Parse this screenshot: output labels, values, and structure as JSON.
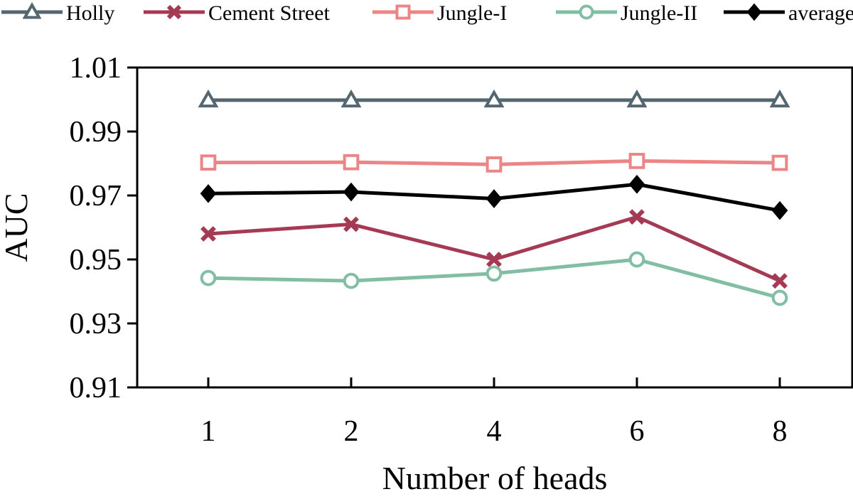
{
  "chart_data": {
    "type": "line",
    "title": "",
    "xlabel": "Number of heads",
    "ylabel": "AUC",
    "categories": [
      "1",
      "2",
      "4",
      "6",
      "8"
    ],
    "ylim": [
      0.91,
      1.01
    ],
    "yticks": [
      "0.91",
      "0.93",
      "0.95",
      "0.97",
      "0.99",
      "1.01"
    ],
    "grid": false,
    "legend_position": "top",
    "series": [
      {
        "name": "Holly",
        "values": [
          0.9998,
          0.9998,
          0.9998,
          0.9998,
          0.9998
        ],
        "color": "#546670",
        "marker": "triangle"
      },
      {
        "name": "Cement Street",
        "values": [
          0.958,
          0.961,
          0.95,
          0.9633,
          0.9433
        ],
        "color": "#a53a55",
        "marker": "x"
      },
      {
        "name": "Jungle-I",
        "values": [
          0.9803,
          0.9804,
          0.9797,
          0.9808,
          0.9802
        ],
        "color": "#ec8585",
        "marker": "square"
      },
      {
        "name": "Jungle-II",
        "values": [
          0.9442,
          0.9433,
          0.9456,
          0.95,
          0.938
        ],
        "color": "#81bea4",
        "marker": "circle"
      },
      {
        "name": "average",
        "values": [
          0.9706,
          0.9711,
          0.969,
          0.9735,
          0.9653
        ],
        "color": "#000000",
        "marker": "diamond"
      }
    ]
  }
}
